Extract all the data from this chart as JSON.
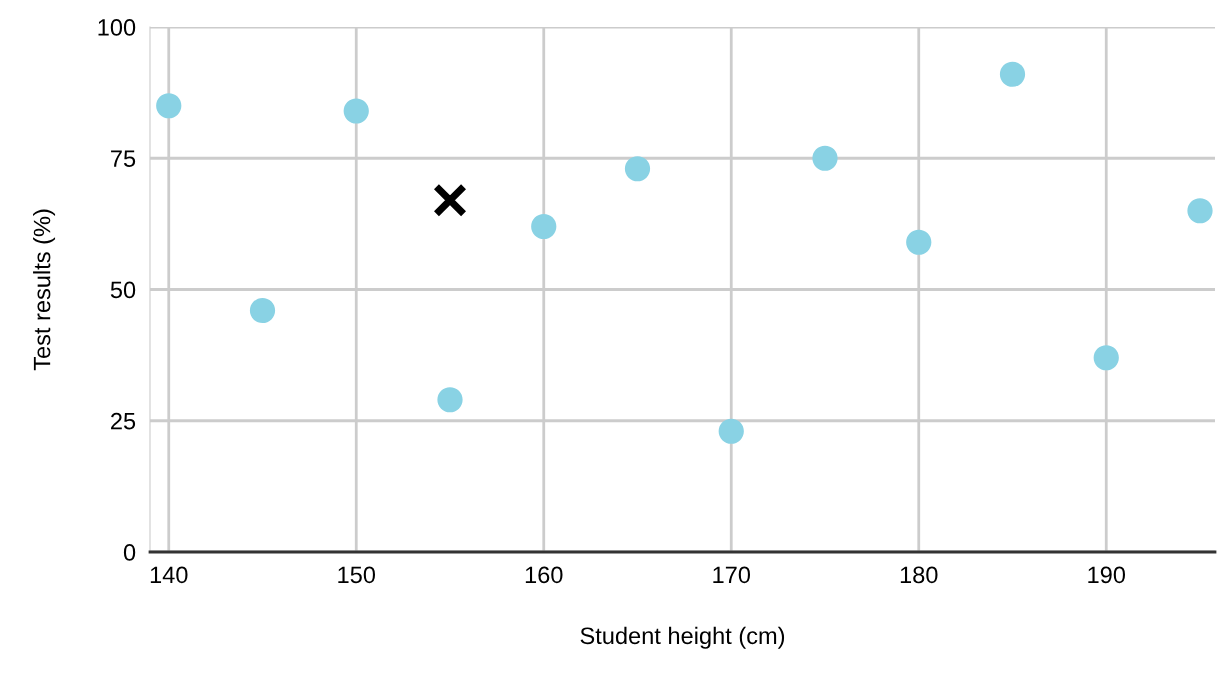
{
  "chart_data": {
    "type": "scatter",
    "xlabel": "Student height (cm)",
    "ylabel": "Test results (%)",
    "series": [
      {
        "color": "#89d2e4",
        "marker": "circle",
        "x": [
          140,
          145,
          150,
          155,
          160,
          165,
          170,
          175,
          180,
          185,
          190,
          195
        ],
        "values": [
          85,
          46,
          84,
          29,
          62,
          73,
          23,
          75,
          59,
          91,
          37,
          65
        ]
      },
      {
        "color": "#000000",
        "marker": "cross",
        "x": [
          155
        ],
        "values": [
          67
        ]
      }
    ],
    "xlim": [
      139,
      195.8
    ],
    "xticks": [
      140,
      150,
      160,
      170,
      180,
      190
    ],
    "ylim": [
      0,
      100
    ],
    "yticks": [
      0,
      25,
      50,
      75,
      100
    ],
    "grid": true
  }
}
